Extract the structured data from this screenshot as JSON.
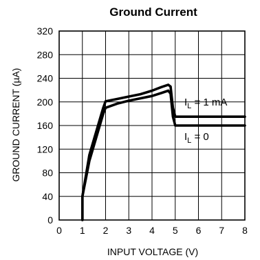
{
  "chart_data": {
    "type": "line",
    "title": "Ground Current",
    "xlabel": "INPUT VOLTAGE (V)",
    "ylabel": "GROUND CURRENT (µA)",
    "xlim": [
      0,
      8
    ],
    "ylim": [
      0,
      320
    ],
    "xticks": [
      0,
      1,
      2,
      3,
      4,
      5,
      6,
      7,
      8
    ],
    "yticks": [
      0,
      40,
      80,
      120,
      160,
      200,
      240,
      280,
      320
    ],
    "grid": true,
    "series": [
      {
        "name": "I_L = 1 mA",
        "label_main": "I",
        "label_sub": "L",
        "label_rest": " = 1 mA",
        "x": [
          1.0,
          1.0,
          1.3,
          1.9,
          2.0,
          2.5,
          3.0,
          3.5,
          4.0,
          4.4,
          4.7,
          4.8,
          4.9,
          5.0,
          8.0
        ],
        "y": [
          0,
          40,
          110,
          190,
          201,
          205,
          209,
          213,
          219,
          225,
          229,
          226,
          190,
          175,
          175
        ]
      },
      {
        "name": "I_L = 0",
        "label_main": "I",
        "label_sub": "L",
        "label_rest": " = 0",
        "x": [
          1.0,
          1.0,
          1.3,
          1.9,
          2.0,
          2.5,
          3.0,
          3.5,
          4.0,
          4.4,
          4.7,
          4.8,
          4.9,
          5.0,
          8.0
        ],
        "y": [
          0,
          40,
          100,
          180,
          190,
          197,
          202,
          206,
          210,
          215,
          219,
          214,
          175,
          160,
          160
        ]
      }
    ]
  }
}
